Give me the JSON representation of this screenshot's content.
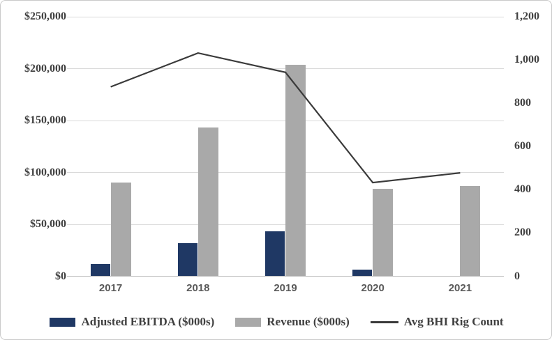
{
  "chart_data": {
    "type": "bar",
    "subtype": "combo-bar-line-dual-axis",
    "categories": [
      "2017",
      "2018",
      "2019",
      "2020",
      "2021"
    ],
    "series": [
      {
        "name": "Adjusted EBITDA ($000s)",
        "type": "bar",
        "axis": "left",
        "color": "#1f3864",
        "values": [
          12000,
          32000,
          43000,
          6500,
          0
        ]
      },
      {
        "name": "Revenue ($000s)",
        "type": "bar",
        "axis": "left",
        "color": "#a9a9a9",
        "values": [
          90000,
          143000,
          204000,
          84000,
          87000
        ]
      },
      {
        "name": "Avg BHI Rig Count",
        "type": "line",
        "axis": "right",
        "color": "#3a3a3a",
        "values": [
          876,
          1032,
          943,
          433,
          478
        ]
      }
    ],
    "title": "",
    "xlabel": "",
    "ylabel_left": "",
    "ylabel_right": "",
    "left_axis": {
      "min": 0,
      "max": 250000,
      "tick_step": 50000,
      "tick_labels": [
        "$0",
        "$50,000",
        "$100,000",
        "$150,000",
        "$200,000",
        "$250,000"
      ]
    },
    "right_axis": {
      "min": 0,
      "max": 1200,
      "tick_step": 200,
      "tick_labels": [
        "0",
        "200",
        "400",
        "600",
        "800",
        "1,000",
        "1,200"
      ]
    },
    "grid": "horizontal",
    "legend_position": "bottom"
  },
  "colors": {
    "ebitda_bar": "#1f3864",
    "revenue_bar": "#a9a9a9",
    "rig_count_line": "#3a3a3a",
    "gridline": "#d9d9d9",
    "axis_line": "#bfbfbf",
    "value_axis_text": "#404040",
    "category_axis_text": "#595959",
    "frame_border": "#c9c9c9"
  }
}
